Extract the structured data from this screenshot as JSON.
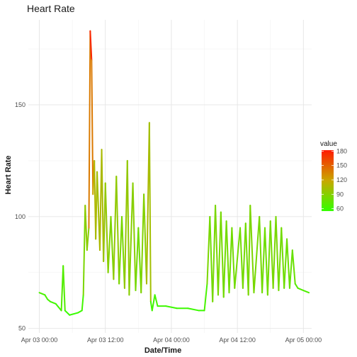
{
  "chart_data": {
    "type": "line",
    "title": "Heart Rate",
    "xlabel": "Date/Time",
    "ylabel": "Heart Rate",
    "x_ticks": [
      {
        "value": "2023-04-03T00:00",
        "label": "Apr 03 00:00"
      },
      {
        "value": "2023-04-03T12:00",
        "label": "Apr 03 12:00"
      },
      {
        "value": "2023-04-04T00:00",
        "label": "Apr 04 00:00"
      },
      {
        "value": "2023-04-04T12:00",
        "label": "Apr 04 12:00"
      },
      {
        "value": "2023-04-05T00:00",
        "label": "Apr 05 00:00"
      }
    ],
    "xlim": [
      "2023-04-02T22:00",
      "2023-04-05T01:30"
    ],
    "ylim": [
      48,
      188
    ],
    "y_ticks": [
      50,
      100,
      150
    ],
    "grid": true,
    "legend": {
      "title": "value",
      "position": "right",
      "ticks": [
        60,
        90,
        120,
        150,
        180
      ],
      "range": [
        55,
        182
      ],
      "colors": [
        "#33ff00",
        "#c9a800",
        "#ff1a00"
      ]
    },
    "series": [
      {
        "values": [
          [
            "2023-04-03T00:00",
            66
          ],
          [
            "2023-04-03T01:00",
            65
          ],
          [
            "2023-04-03T01:30",
            63
          ],
          [
            "2023-04-03T02:00",
            62
          ],
          [
            "2023-04-03T03:00",
            61
          ],
          [
            "2023-04-03T04:00",
            58
          ],
          [
            "2023-04-03T04:20",
            78
          ],
          [
            "2023-04-03T04:40",
            58
          ],
          [
            "2023-04-03T05:30",
            56
          ],
          [
            "2023-04-03T07:00",
            57
          ],
          [
            "2023-04-03T07:45",
            58
          ],
          [
            "2023-04-03T08:00",
            65
          ],
          [
            "2023-04-03T08:20",
            105
          ],
          [
            "2023-04-03T08:40",
            85
          ],
          [
            "2023-04-03T09:00",
            95
          ],
          [
            "2023-04-03T09:15",
            183
          ],
          [
            "2023-04-03T09:30",
            170
          ],
          [
            "2023-04-03T09:45",
            110
          ],
          [
            "2023-04-03T10:00",
            125
          ],
          [
            "2023-04-03T10:15",
            90
          ],
          [
            "2023-04-03T10:30",
            120
          ],
          [
            "2023-04-03T11:00",
            85
          ],
          [
            "2023-04-03T11:20",
            130
          ],
          [
            "2023-04-03T11:40",
            80
          ],
          [
            "2023-04-03T12:00",
            115
          ],
          [
            "2023-04-03T12:30",
            75
          ],
          [
            "2023-04-03T13:00",
            100
          ],
          [
            "2023-04-03T13:30",
            72
          ],
          [
            "2023-04-03T14:00",
            118
          ],
          [
            "2023-04-03T14:30",
            70
          ],
          [
            "2023-04-03T15:00",
            100
          ],
          [
            "2023-04-03T15:30",
            68
          ],
          [
            "2023-04-03T16:00",
            125
          ],
          [
            "2023-04-03T16:20",
            65
          ],
          [
            "2023-04-03T17:00",
            115
          ],
          [
            "2023-04-03T17:30",
            67
          ],
          [
            "2023-04-03T18:00",
            95
          ],
          [
            "2023-04-03T18:30",
            66
          ],
          [
            "2023-04-03T19:00",
            110
          ],
          [
            "2023-04-03T19:30",
            70
          ],
          [
            "2023-04-03T20:00",
            142
          ],
          [
            "2023-04-03T20:15",
            62
          ],
          [
            "2023-04-03T20:30",
            58
          ],
          [
            "2023-04-03T21:00",
            65
          ],
          [
            "2023-04-03T21:30",
            60
          ],
          [
            "2023-04-03T23:00",
            60
          ],
          [
            "2023-04-04T01:00",
            59
          ],
          [
            "2023-04-04T03:00",
            59
          ],
          [
            "2023-04-04T05:00",
            58
          ],
          [
            "2023-04-04T06:00",
            58
          ],
          [
            "2023-04-04T06:30",
            70
          ],
          [
            "2023-04-04T07:00",
            100
          ],
          [
            "2023-04-04T07:30",
            62
          ],
          [
            "2023-04-04T08:00",
            105
          ],
          [
            "2023-04-04T08:30",
            65
          ],
          [
            "2023-04-04T09:00",
            102
          ],
          [
            "2023-04-04T09:30",
            64
          ],
          [
            "2023-04-04T10:00",
            98
          ],
          [
            "2023-04-04T10:30",
            66
          ],
          [
            "2023-04-04T11:00",
            95
          ],
          [
            "2023-04-04T11:30",
            68
          ],
          [
            "2023-04-04T12:30",
            95
          ],
          [
            "2023-04-04T13:00",
            68
          ],
          [
            "2023-04-04T13:30",
            97
          ],
          [
            "2023-04-04T14:00",
            65
          ],
          [
            "2023-04-04T14:20",
            105
          ],
          [
            "2023-04-04T15:00",
            66
          ],
          [
            "2023-04-04T16:00",
            100
          ],
          [
            "2023-04-04T16:30",
            66
          ],
          [
            "2023-04-04T17:00",
            95
          ],
          [
            "2023-04-04T17:30",
            65
          ],
          [
            "2023-04-04T18:00",
            98
          ],
          [
            "2023-04-04T18:30",
            68
          ],
          [
            "2023-04-04T19:00",
            100
          ],
          [
            "2023-04-04T19:30",
            67
          ],
          [
            "2023-04-04T20:00",
            95
          ],
          [
            "2023-04-04T20:30",
            68
          ],
          [
            "2023-04-04T21:00",
            90
          ],
          [
            "2023-04-04T21:30",
            68
          ],
          [
            "2023-04-04T22:00",
            85
          ],
          [
            "2023-04-04T22:30",
            70
          ],
          [
            "2023-04-04T23:00",
            68
          ],
          [
            "2023-04-05T00:00",
            67
          ],
          [
            "2023-04-05T01:00",
            66
          ]
        ]
      }
    ]
  }
}
